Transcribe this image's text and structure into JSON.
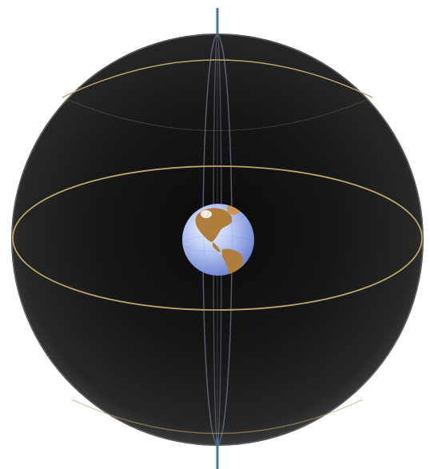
{
  "diagram": {
    "elements": [
      "celestial-sphere",
      "celestial-equator",
      "north-cap-circle",
      "south-cap-circle",
      "meridian-front",
      "meridian-back",
      "rotation-axis",
      "earth-globe"
    ]
  },
  "colors": {
    "background": "#ffffff",
    "sphere_core": "#1c1c1c",
    "sphere_edge": "#262626",
    "sphere_rim_light": "#6b6e73",
    "equator_line": "#b9a46a",
    "meridian_line": "#6f7a8e",
    "axis_line": "#4a6fa8",
    "ocean_light": "#dfe8fb",
    "ocean_dark": "#6f86d6",
    "land": "#b07d3a",
    "land_highlight": "#c9964f"
  }
}
